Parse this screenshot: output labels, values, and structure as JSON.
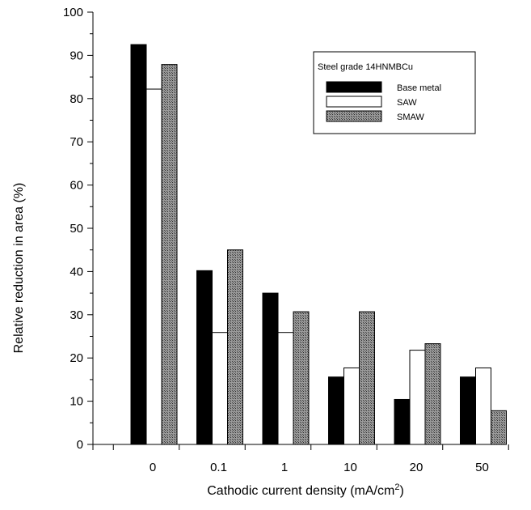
{
  "chart_data": {
    "type": "bar",
    "title": "",
    "xlabel": "Cathodic current density (mA/cm",
    "xlabel_sup": "2",
    "xlabel_end": ")",
    "ylabel": "Relative reduction in area (%)",
    "ylim": [
      0,
      100
    ],
    "yticks": [
      "0",
      "10",
      "20",
      "30",
      "40",
      "50",
      "60",
      "70",
      "80",
      "90",
      "100"
    ],
    "categories": [
      "0",
      "0.1",
      "1",
      "10",
      "20",
      "50"
    ],
    "series": [
      {
        "name": "Base metal",
        "values": [
          92.5,
          40.2,
          35.0,
          15.6,
          10.4,
          15.6
        ]
      },
      {
        "name": "SAW",
        "values": [
          82.2,
          25.9,
          25.9,
          17.7,
          21.8,
          17.7
        ]
      },
      {
        "name": "SMAW",
        "values": [
          87.9,
          45.0,
          30.7,
          30.7,
          23.3,
          7.8
        ]
      }
    ],
    "series_fill": [
      "#000000",
      "#ffffff",
      "hatched-gray"
    ],
    "legend": {
      "title": "Steel grade 14HNMBCu",
      "placement": "top-right"
    },
    "grid": false
  }
}
